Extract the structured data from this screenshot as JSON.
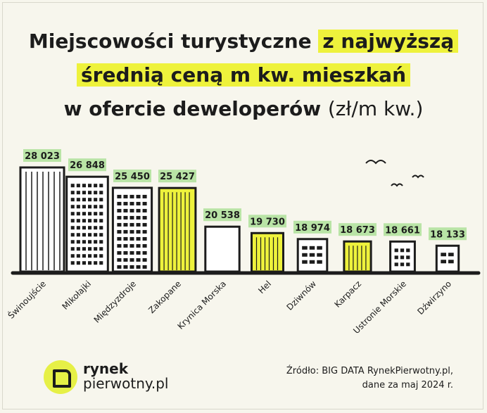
{
  "title": {
    "line1_plain": "Miejscowości turystyczne",
    "line1_highlight": "z najwyższą",
    "line2_highlight": "średnią ceną m kw. mieszkań",
    "line3_plain": "w ofercie deweloperów",
    "line3_unit": "(zł/m kw.)"
  },
  "chart_data": {
    "type": "bar",
    "categories": [
      "Świnoujście",
      "Mikołajki",
      "Międzyzdroje",
      "Zakopane",
      "Krynica Morska",
      "Hel",
      "Dziwnów",
      "Karpacz",
      "Ustronie Morskie",
      "Dźwirzyno"
    ],
    "values": [
      28023,
      26848,
      25450,
      25427,
      20538,
      19730,
      18974,
      18673,
      18661,
      18133
    ],
    "value_labels": [
      "28 023",
      "26 848",
      "25 450",
      "25 427",
      "20 538",
      "19 730",
      "18 974",
      "18 673",
      "18 661",
      "18 133"
    ],
    "highlighted": [
      false,
      false,
      false,
      true,
      false,
      true,
      false,
      true,
      false,
      false
    ],
    "title": "",
    "xlabel": "",
    "ylabel": "",
    "grid": false,
    "legend": "none"
  },
  "colors": {
    "background": "#f7f6ed",
    "highlight": "#eef23c",
    "label_background": "#b9e4a6",
    "ink": "#1c1c1c"
  },
  "logo": {
    "line1": "rynek",
    "line2": "pierwotny.pl",
    "icon": "rynek-pierwotny-logo-icon"
  },
  "source": {
    "line1": "Źródło: BIG DATA RynekPierwotny.pl,",
    "line2": "dane za maj 2024 r."
  }
}
